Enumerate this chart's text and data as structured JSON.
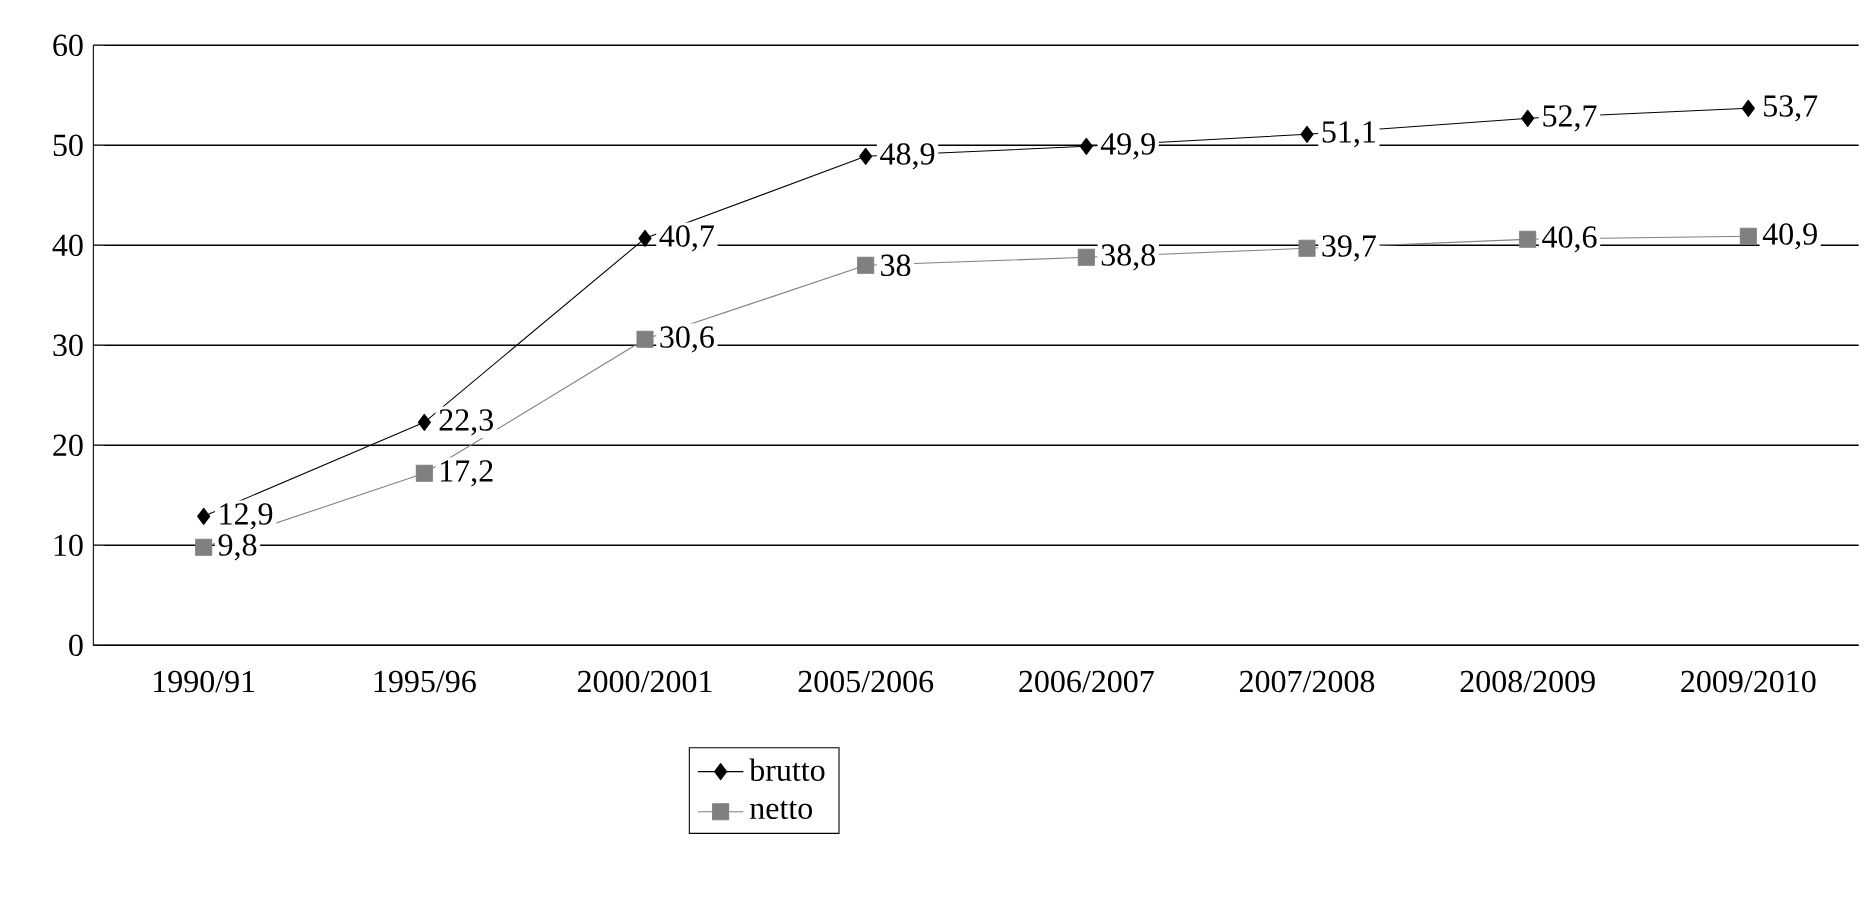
{
  "chart_data": {
    "type": "line",
    "categories": [
      "1990/91",
      "1995/96",
      "2000/2001",
      "2005/2006",
      "2006/2007",
      "2007/2008",
      "2008/2009",
      "2009/2010"
    ],
    "series": [
      {
        "name": "brutto",
        "color": "#000000",
        "marker": "diamond",
        "values": [
          12.9,
          22.3,
          40.7,
          48.9,
          49.9,
          51.1,
          52.7,
          53.7
        ],
        "value_labels": [
          "12,9",
          "22,3",
          "40,7",
          "48,9",
          "49,9",
          "51,1",
          "52,7",
          "53,7"
        ]
      },
      {
        "name": "netto",
        "color": "#808080",
        "marker": "square",
        "values": [
          9.8,
          17.2,
          30.6,
          38,
          38.8,
          39.7,
          40.6,
          40.9
        ],
        "value_labels": [
          "9,8",
          "17,2",
          "30,6",
          "38",
          "38,8",
          "39,7",
          "40,6",
          "40,9"
        ]
      }
    ],
    "ylim": [
      0,
      60
    ],
    "yticks": [
      0,
      10,
      20,
      30,
      40,
      50,
      60
    ],
    "grid": "y",
    "legend": "bottom"
  }
}
